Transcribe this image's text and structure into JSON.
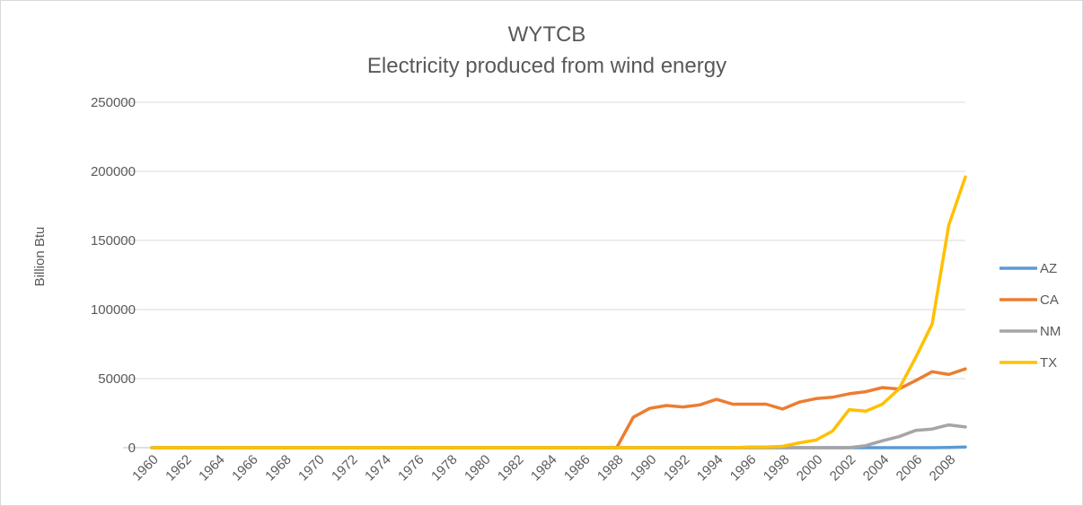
{
  "chart_data": {
    "type": "line",
    "title": "WYTCB",
    "subtitle": "Electricity produced from wind energy",
    "ylabel": "Billion Btu",
    "xlabel": "",
    "ylim": [
      0,
      250000
    ],
    "yticks": [
      "0",
      "50000",
      "100000",
      "150000",
      "200000",
      "250000"
    ],
    "ytick_values": [
      0,
      50000,
      100000,
      150000,
      200000,
      250000
    ],
    "x": [
      1960,
      1961,
      1962,
      1963,
      1964,
      1965,
      1966,
      1967,
      1968,
      1969,
      1970,
      1971,
      1972,
      1973,
      1974,
      1975,
      1976,
      1977,
      1978,
      1979,
      1980,
      1981,
      1982,
      1983,
      1984,
      1985,
      1986,
      1987,
      1988,
      1989,
      1990,
      1991,
      1992,
      1993,
      1994,
      1995,
      1996,
      1997,
      1998,
      1999,
      2000,
      2001,
      2002,
      2003,
      2004,
      2005,
      2006,
      2007,
      2008,
      2009
    ],
    "xtick_labels": [
      "1960",
      "1962",
      "1964",
      "1966",
      "1968",
      "1970",
      "1972",
      "1974",
      "1976",
      "1978",
      "1980",
      "1982",
      "1984",
      "1986",
      "1988",
      "1990",
      "1992",
      "1994",
      "1996",
      "1998",
      "2000",
      "2002",
      "2004",
      "2006",
      "2008"
    ],
    "grid": true,
    "legend": "right",
    "series": [
      {
        "name": "AZ",
        "color": "#5b9bd5",
        "values": [
          0,
          0,
          0,
          0,
          0,
          0,
          0,
          0,
          0,
          0,
          0,
          0,
          0,
          0,
          0,
          0,
          0,
          0,
          0,
          0,
          0,
          0,
          0,
          0,
          0,
          0,
          0,
          0,
          0,
          0,
          0,
          0,
          0,
          0,
          0,
          0,
          0,
          0,
          0,
          0,
          0,
          0,
          0,
          0,
          0,
          0,
          0,
          0,
          100,
          500
        ]
      },
      {
        "name": "CA",
        "color": "#ed7d31",
        "values": [
          0,
          0,
          0,
          0,
          0,
          0,
          0,
          0,
          0,
          0,
          0,
          0,
          0,
          0,
          0,
          0,
          0,
          0,
          0,
          0,
          0,
          0,
          0,
          0,
          0,
          0,
          0,
          0,
          0,
          22000,
          28500,
          30500,
          29500,
          31000,
          35000,
          31500,
          31500,
          31500,
          28000,
          33000,
          35500,
          36500,
          39000,
          40500,
          43500,
          42500,
          48500,
          55000,
          53000,
          57000
        ]
      },
      {
        "name": "NM",
        "color": "#a5a5a5",
        "values": [
          0,
          0,
          0,
          0,
          0,
          0,
          0,
          0,
          0,
          0,
          0,
          0,
          0,
          0,
          0,
          0,
          0,
          0,
          0,
          0,
          0,
          0,
          0,
          0,
          0,
          0,
          0,
          0,
          0,
          0,
          0,
          0,
          0,
          0,
          0,
          0,
          0,
          0,
          0,
          0,
          0,
          0,
          0,
          1500,
          5000,
          8000,
          12500,
          13500,
          16500,
          15000
        ]
      },
      {
        "name": "TX",
        "color": "#ffc000",
        "values": [
          0,
          0,
          0,
          0,
          0,
          0,
          0,
          0,
          0,
          0,
          0,
          0,
          0,
          0,
          0,
          0,
          0,
          0,
          0,
          0,
          0,
          0,
          0,
          0,
          0,
          0,
          0,
          0,
          0,
          0,
          0,
          0,
          0,
          0,
          0,
          0,
          500,
          500,
          1000,
          3500,
          5500,
          12000,
          27500,
          26500,
          31500,
          42500,
          65000,
          89500,
          161000,
          196000
        ]
      }
    ]
  }
}
